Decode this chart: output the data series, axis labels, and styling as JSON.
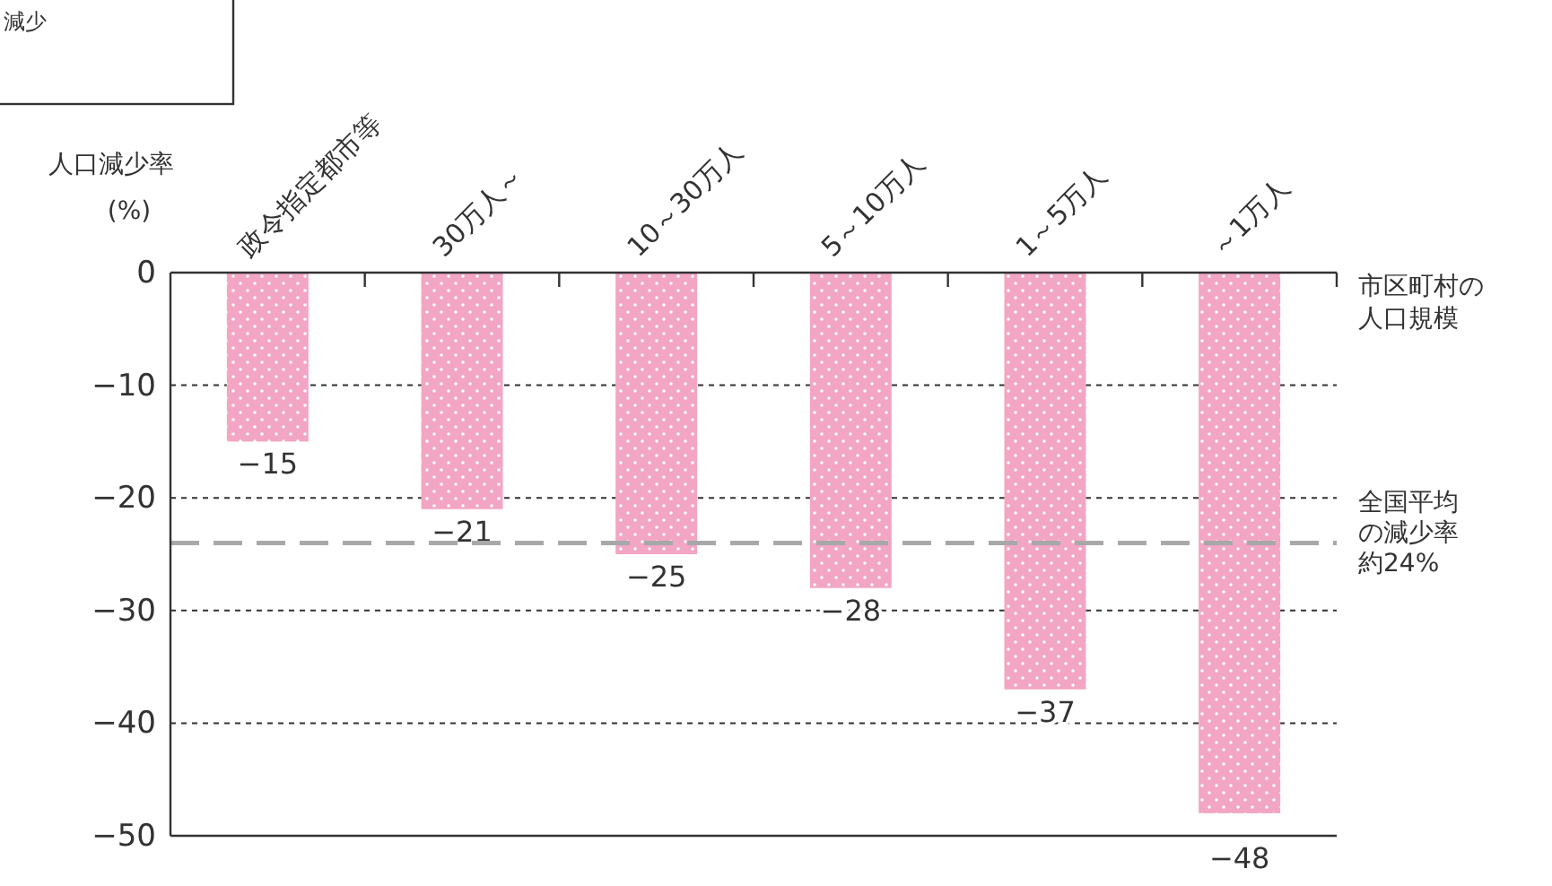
{
  "chart_data": {
    "type": "bar",
    "categories": [
      "政令指定都市等",
      "30万人～",
      "10～30万人",
      "5～10万人",
      "1～5万人",
      "～1万人"
    ],
    "values": [
      -15,
      -21,
      -25,
      -28,
      -37,
      -48
    ],
    "value_labels": [
      "−15",
      "−21",
      "−25",
      "−28",
      "−37",
      "−48"
    ],
    "color": "#f3a5c4",
    "ylim": [
      -50,
      0
    ],
    "yticks": [
      {
        "value": 0,
        "label": "0"
      },
      {
        "value": -10,
        "label": "−10"
      },
      {
        "value": -20,
        "label": "−20"
      },
      {
        "value": -30,
        "label": "−30"
      },
      {
        "value": -40,
        "label": "−40"
      },
      {
        "value": -50,
        "label": "−50"
      }
    ],
    "grid": "y",
    "xlabel": "市区町村の人口規模",
    "ylabel": "人口減少率\n(%)",
    "ref_lines": [
      {
        "axis": "y",
        "value": -24,
        "label": "全国平均の減少率約24%",
        "color": "#a8a8a8",
        "line_style": "dashed"
      }
    ],
    "annotations": [
      "減少"
    ]
  }
}
